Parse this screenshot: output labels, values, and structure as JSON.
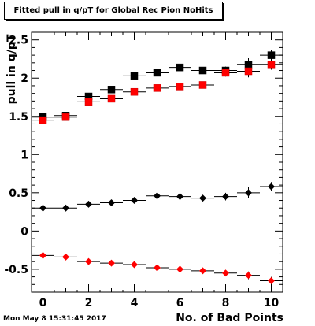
{
  "chart_data": {
    "type": "scatter",
    "title": "Fitted pull in q/pT for Global Rec Pion NoHits",
    "xlabel": "No. of Bad Points",
    "ylabel": "pull in q/pT",
    "xlim": [
      -0.5,
      10.5
    ],
    "ylim": [
      -0.8,
      2.6
    ],
    "xticks": [
      "0",
      "2",
      "4",
      "6",
      "8",
      "10"
    ],
    "yticks": [
      "-0.5",
      "0",
      "0.5",
      "1",
      "1.5",
      "2",
      "2.5"
    ],
    "grid": false,
    "series": [
      {
        "marker": "square",
        "color": "#000000",
        "x": [
          0,
          1,
          2,
          3,
          4,
          5,
          6,
          7,
          8,
          9,
          10
        ],
        "values": [
          1.49,
          1.51,
          1.76,
          1.85,
          2.03,
          2.07,
          2.14,
          2.1,
          2.1,
          2.18,
          2.3
        ],
        "errors": [
          0.03,
          0.03,
          0.04,
          0.03,
          0.04,
          0.04,
          0.04,
          0.04,
          0.05,
          0.08,
          0.07
        ]
      },
      {
        "marker": "square",
        "color": "#ff0000",
        "x": [
          0,
          1,
          2,
          3,
          4,
          5,
          6,
          7,
          8,
          9,
          10
        ],
        "values": [
          1.45,
          1.49,
          1.69,
          1.73,
          1.82,
          1.87,
          1.89,
          1.91,
          2.07,
          2.09,
          2.18
        ],
        "errors": [
          0.03,
          0.03,
          0.04,
          0.03,
          0.04,
          0.03,
          0.04,
          0.04,
          0.05,
          0.08,
          0.07
        ]
      },
      {
        "marker": "diamond",
        "color": "#000000",
        "x": [
          0,
          1,
          2,
          3,
          4,
          5,
          6,
          7,
          8,
          9,
          10
        ],
        "values": [
          0.3,
          0.3,
          0.35,
          0.37,
          0.4,
          0.46,
          0.45,
          0.43,
          0.45,
          0.5,
          0.58
        ],
        "errors": [
          0.02,
          0.02,
          0.03,
          0.03,
          0.03,
          0.03,
          0.04,
          0.04,
          0.05,
          0.07,
          0.06
        ]
      },
      {
        "marker": "diamond",
        "color": "#ff0000",
        "x": [
          0,
          1,
          2,
          3,
          4,
          5,
          6,
          7,
          8,
          9,
          10
        ],
        "values": [
          -0.32,
          -0.34,
          -0.4,
          -0.42,
          -0.44,
          -0.48,
          -0.5,
          -0.52,
          -0.55,
          -0.58,
          -0.65
        ],
        "errors": [
          0.02,
          0.02,
          0.03,
          0.03,
          0.03,
          0.03,
          0.03,
          0.03,
          0.04,
          0.05,
          0.05
        ]
      }
    ]
  },
  "footer": {
    "timestamp": "Mon May  8 15:31:45 2017"
  }
}
